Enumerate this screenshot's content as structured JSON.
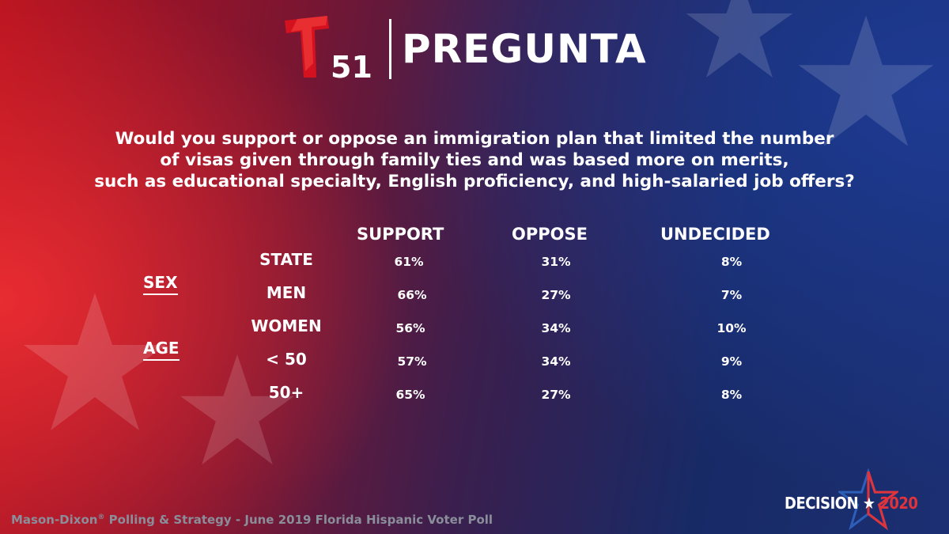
{
  "header": {
    "logo_number": "51",
    "title": "PREGUNTA"
  },
  "question": {
    "lines": [
      "Would you support or oppose an immigration plan that limited the number",
      "of visas given through family ties and was based more on merits,",
      "such as educational specialty, English proficiency, and high-salaried job offers?"
    ]
  },
  "groups": {
    "sex": "SEX",
    "age": "AGE"
  },
  "chart_data": {
    "type": "table",
    "columns": [
      "SUPPORT",
      "OPPOSE",
      "UNDECIDED"
    ],
    "rows": [
      {
        "label": "STATE",
        "values": [
          "61%",
          "31%",
          "8%"
        ]
      },
      {
        "label": "MEN",
        "values": [
          "66%",
          "27%",
          "7%"
        ]
      },
      {
        "label": "WOMEN",
        "values": [
          "56%",
          "34%",
          "10%"
        ]
      },
      {
        "label": "< 50",
        "values": [
          "57%",
          "34%",
          "9%"
        ]
      },
      {
        "label": "50+",
        "values": [
          "65%",
          "27%",
          "8%"
        ]
      }
    ]
  },
  "footer": {
    "source_prefix": "Mason-Dixon",
    "source_mark": "®",
    "source_suffix": " Polling & Strategy - June 2019 Florida Hispanic Voter Poll"
  },
  "badge": {
    "word": "DECISION",
    "star": "★",
    "year": "2020"
  },
  "colors": {
    "accent_red": "#e0333a",
    "logo_red": "#d4111e",
    "footer_gray": "#8a8e9a"
  }
}
